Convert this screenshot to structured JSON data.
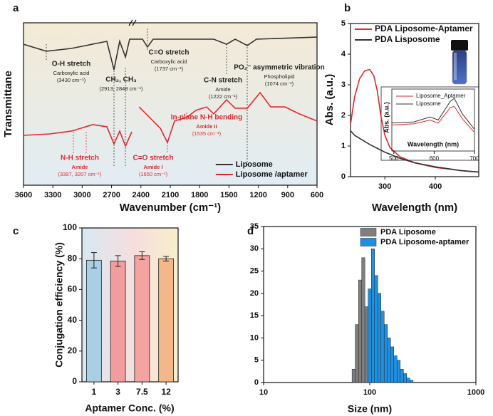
{
  "chart_data": [
    {
      "type": "line",
      "label": "a",
      "xlabel": "Wavenumber (cm⁻¹)",
      "ylabel": "Transmittane",
      "xlim": [
        3600,
        600
      ],
      "xticks": [
        3600,
        3300,
        3000,
        2700,
        2400,
        2100,
        1800,
        1500,
        1200,
        900,
        600
      ],
      "ylim": [
        0,
        100
      ],
      "legend": "lower right",
      "series": [
        {
          "name": "Liposome",
          "color": "#333333",
          "x": [
            3600,
            3367,
            3112,
            2821,
            2748,
            2675,
            2617,
            2558,
            2515,
            2384,
            2333,
            2275,
            1947,
            1656,
            1525,
            1437,
            1313,
            1219,
            600
          ],
          "values": [
            86.8,
            82.5,
            84.2,
            87.7,
            88.6,
            71.1,
            88.6,
            78.9,
            89.9,
            89.9,
            85.1,
            89.9,
            89.9,
            89.9,
            86.8,
            89.9,
            86.0,
            89.9,
            91.2
          ]
        },
        {
          "name": "Liposome /aptamer",
          "color": "#e8262b",
          "x": [
            3600,
            3331,
            3112,
            2894,
            2748,
            2675,
            2617,
            2558,
            2493,
            2450,
            2420,
            2347,
            2275,
            2202,
            2129,
            2056,
            1932,
            1838,
            1729,
            1656,
            1525,
            1437,
            1313,
            1182,
            1073,
            927,
            782,
            600
          ],
          "values": [
            30.7,
            31.6,
            33.3,
            37.3,
            36.0,
            25.4,
            33.3,
            24.1,
            32.9,
            null,
            48.2,
            43.9,
            39.5,
            35.1,
            26.3,
            39.5,
            41.7,
            46.1,
            48.2,
            43.9,
            52.6,
            47.4,
            47.4,
            57.0,
            48.2,
            48.2,
            43.9,
            39.5
          ]
        }
      ],
      "annotations": [
        {
          "color": "#222222",
          "lines": [
            "O-H stretch",
            "Carboxylic acid",
            "(3430 cm⁻¹)"
          ]
        },
        {
          "color": "#222222",
          "lines": [
            "CH₂, CH₃",
            "(2913, 2848 cm⁻¹)"
          ]
        },
        {
          "color": "#222222",
          "lines": [
            "C=O stretch",
            "Carboxylic acid",
            "(1737 cm⁻¹)"
          ]
        },
        {
          "color": "#222222",
          "lines": [
            "C-N stretch",
            "Amide",
            "(1222 cm⁻¹)"
          ]
        },
        {
          "color": "#222222",
          "lines": [
            "PO₂⁻ asymmetric vibration",
            "Phospholipid",
            "(1074 cm⁻¹)"
          ]
        },
        {
          "color": "#e8262b",
          "lines": [
            "N-H stretch",
            "Amide",
            "(3397, 3207 cm⁻¹)"
          ]
        },
        {
          "color": "#e8262b",
          "lines": [
            "C=O stretch",
            "Amide  I",
            "(1650 cm⁻¹)"
          ]
        },
        {
          "color": "#e8262b",
          "lines": [
            "In-plane N-H bending",
            "Amide II",
            "(1535  cm⁻¹)"
          ]
        }
      ]
    },
    {
      "type": "line",
      "label": "b",
      "xlabel": "Wavelength (nm)",
      "ylabel": "Abs. (a.u.)",
      "xlim": [
        232,
        486
      ],
      "xticks": [
        300,
        400
      ],
      "ylim": [
        0,
        5
      ],
      "yticks": [
        0,
        1,
        2,
        3,
        4,
        5
      ],
      "legend": "upper right",
      "series": [
        {
          "name": "PDA Liposome-Aptamer",
          "color": "#e8262b",
          "x": [
            232,
            240,
            250,
            260,
            270,
            278,
            285,
            292,
            300,
            310,
            330,
            360,
            400,
            450,
            486
          ],
          "values": [
            1.7,
            2.6,
            3.2,
            3.45,
            3.5,
            3.3,
            2.8,
            2.0,
            1.35,
            0.95,
            0.65,
            0.45,
            0.3,
            0.2,
            0.15
          ]
        },
        {
          "name": "PDA Lisposome",
          "color": "#333333",
          "x": [
            232,
            240,
            250,
            270,
            300,
            330,
            360,
            400,
            450,
            486
          ],
          "values": [
            1.5,
            1.35,
            1.25,
            1.05,
            0.8,
            0.6,
            0.45,
            0.32,
            0.2,
            0.15
          ]
        }
      ]
    },
    {
      "type": "line",
      "xlabel": "Wavelength (nm)",
      "ylabel": "Abs. (a.u.)",
      "xlim": [
        495,
        700
      ],
      "xticks": [
        500,
        600,
        700
      ],
      "ylim": [
        0,
        1
      ],
      "legend": "upper left",
      "series": [
        {
          "name": "Liposome_Aptamer",
          "color": "#e8262b",
          "x": [
            495,
            550,
            590,
            610,
            640,
            650,
            670,
            700
          ],
          "values": [
            0.42,
            0.44,
            0.5,
            0.45,
            0.7,
            0.72,
            0.52,
            0.3
          ]
        },
        {
          "name": "Liposome",
          "color": "#333333",
          "x": [
            495,
            550,
            590,
            610,
            640,
            650,
            670,
            700
          ],
          "values": [
            0.45,
            0.47,
            0.55,
            0.5,
            0.8,
            0.85,
            0.6,
            0.35
          ]
        }
      ]
    },
    {
      "type": "bar",
      "label": "c",
      "xlabel": "Aptamer Conc. (%)",
      "ylabel": "Conjugation  efficiency (%)",
      "categories": [
        "1",
        "3",
        "7.5",
        "12"
      ],
      "values": [
        79,
        78.5,
        82,
        80
      ],
      "errors": [
        5,
        3.5,
        2.5,
        1.5
      ],
      "colors": [
        "#a8cfe3",
        "#f29d9d",
        "#f4a3a3",
        "#f2b88a"
      ],
      "ylim": [
        0,
        100
      ],
      "yticks": [
        0,
        20,
        40,
        60,
        80,
        100
      ]
    },
    {
      "type": "histogram",
      "label": "d",
      "xlabel": "Size (nm)",
      "xscale": "log",
      "xlim": [
        10,
        1000
      ],
      "xticks": [
        10,
        100,
        1000
      ],
      "ylim": [
        0,
        35
      ],
      "yticks": [
        0,
        5,
        10,
        15,
        20,
        25,
        30,
        35
      ],
      "legend": "upper right",
      "series": [
        {
          "name": "PDA Liposome",
          "color": "#7f7f7f",
          "bins": [
            68.1,
            73.0,
            78.3,
            84.0,
            90.0,
            96.5
          ],
          "values": [
            3,
            13,
            23,
            28,
            17
          ]
        },
        {
          "name": "PDA Liposome-aptamer",
          "color": "#1f8fe0",
          "bins": [
            96.5,
            103.5,
            111,
            119,
            127.5,
            136.7,
            146.6,
            157.2,
            168.5,
            180.7,
            193.7,
            207.7,
            222.7,
            238.8,
            256
          ],
          "values": [
            21,
            30,
            24,
            20,
            16,
            13,
            10,
            8,
            6,
            5,
            3,
            2,
            1,
            0.5
          ]
        }
      ]
    }
  ]
}
